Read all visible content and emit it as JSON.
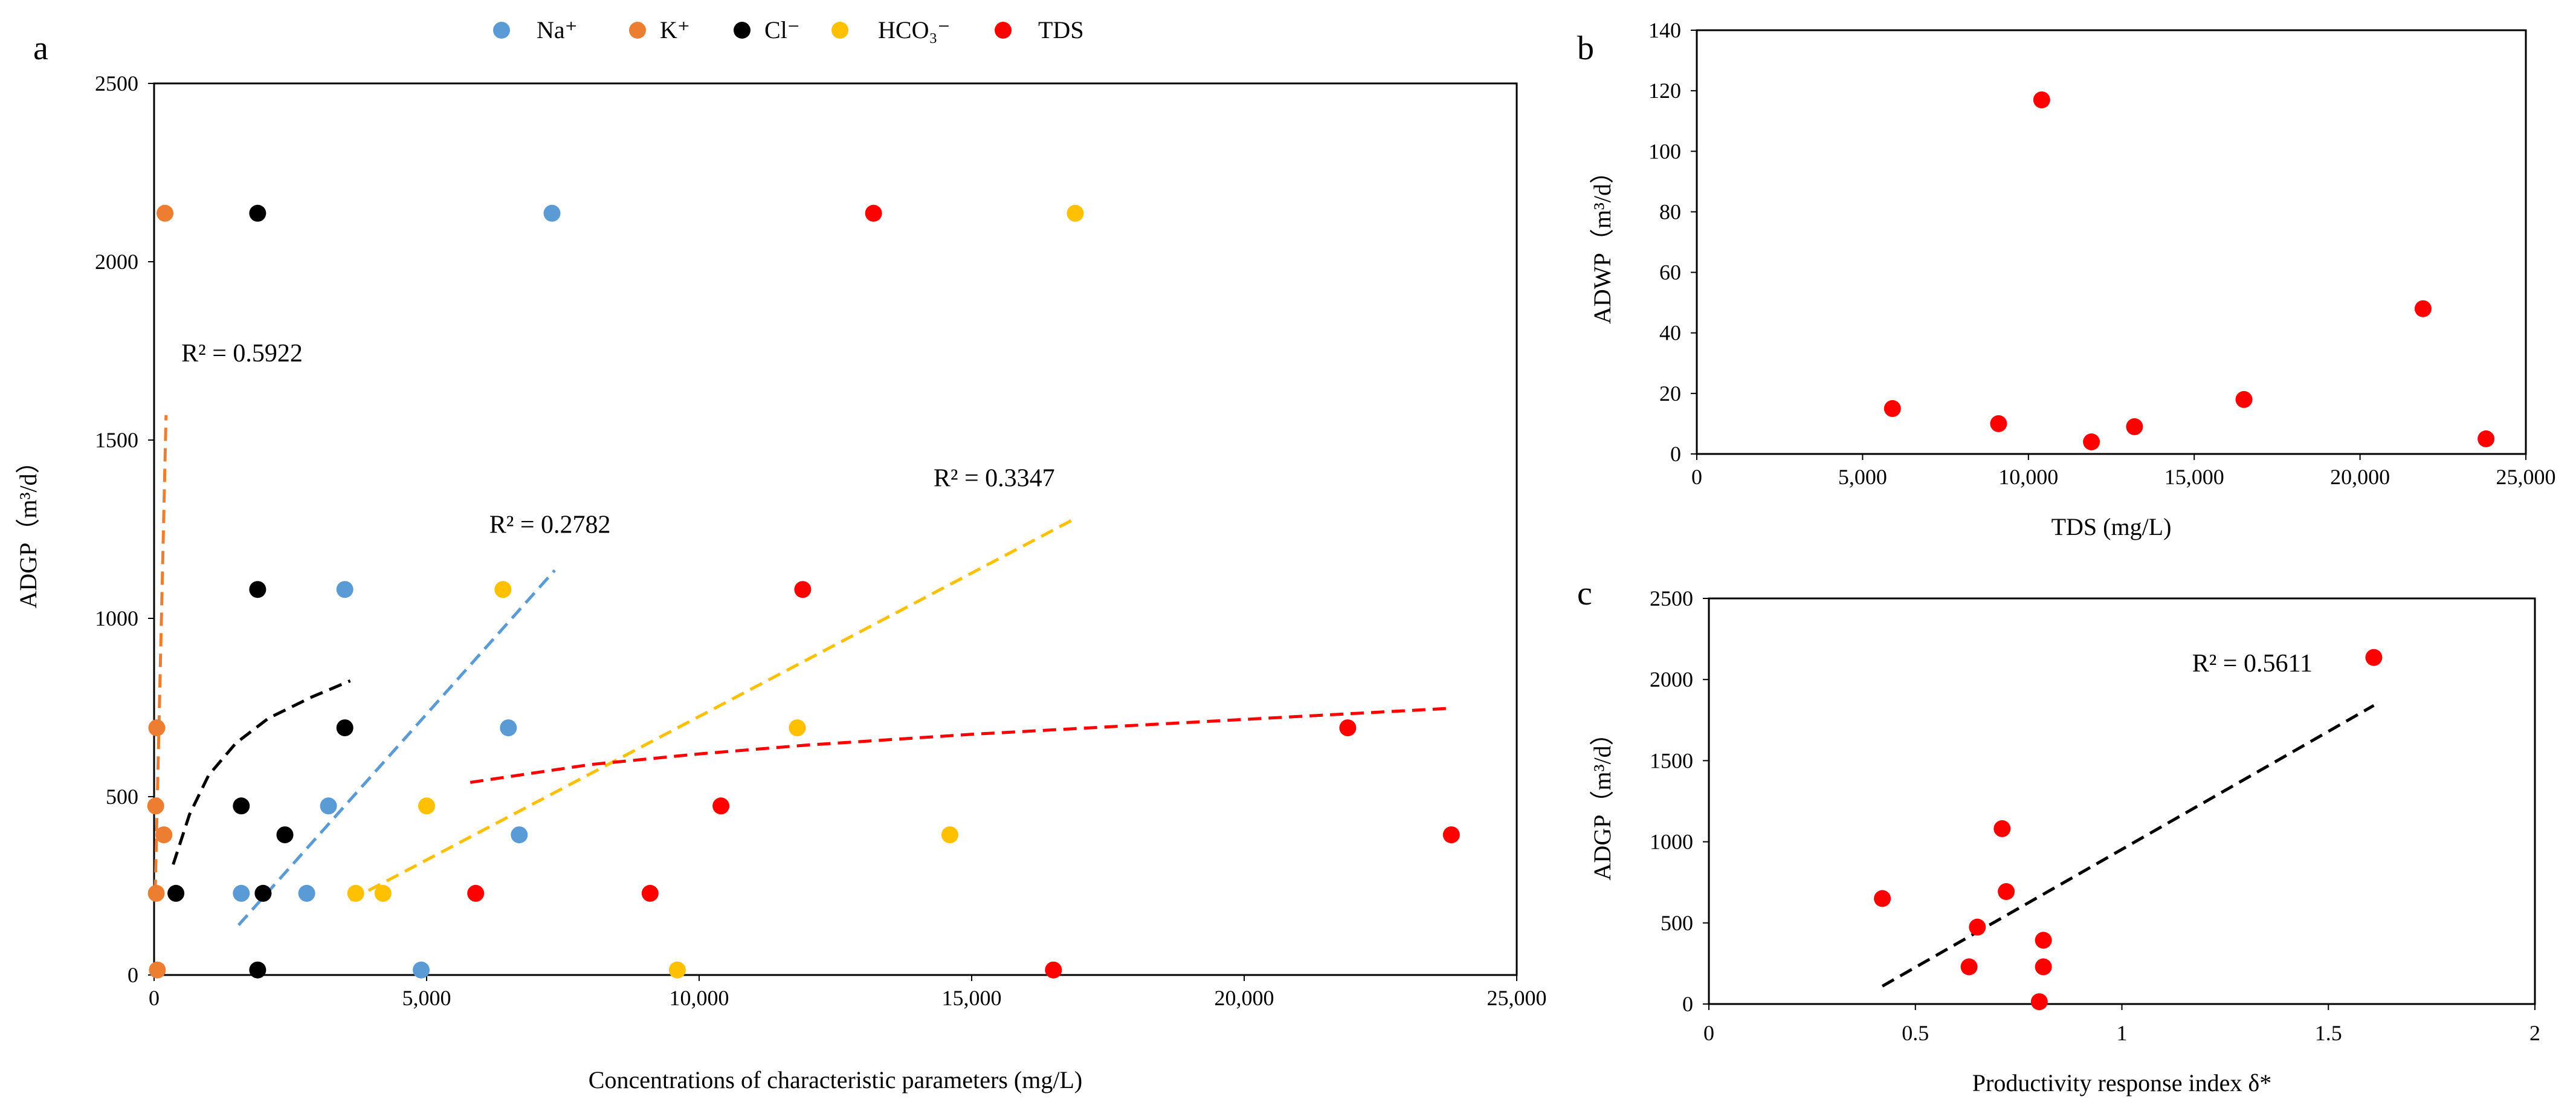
{
  "legend": [
    {
      "label": "Na⁺",
      "color": "#5B9BD5"
    },
    {
      "label": "K⁺",
      "color": "#ED7D31"
    },
    {
      "label": "Cl⁻",
      "color": "#000000"
    },
    {
      "label": "HCO₃⁻",
      "color": "#FFC000"
    },
    {
      "label": "TDS",
      "color": "#FF0000"
    }
  ],
  "chart_data": [
    {
      "id": "a",
      "panel_label": "a",
      "type": "scatter",
      "xlabel": "Concentrations of characteristic parameters (mg/L)",
      "ylabel": "ADGP（m³/d）",
      "xlim": [
        0,
        25000
      ],
      "ylim": [
        0,
        2500
      ],
      "x_ticks": [
        0,
        5000,
        10000,
        15000,
        20000,
        25000
      ],
      "x_tick_labels": [
        "0",
        "5,000",
        "10,000",
        "15,000",
        "20,000",
        "25,000"
      ],
      "y_ticks": [
        0,
        500,
        1000,
        1500,
        2000,
        2500
      ],
      "y_tick_labels": [
        "0",
        "500",
        "1000",
        "1500",
        "2000",
        "2500"
      ],
      "series": [
        {
          "name": "Na⁺",
          "color": "#5B9BD5",
          "points": [
            [
              7300,
              2136
            ],
            [
              3500,
              1081
            ],
            [
              6500,
              693
            ],
            [
              3200,
              474
            ],
            [
              6700,
              393
            ],
            [
              1600,
              229
            ],
            [
              2000,
              229
            ],
            [
              2800,
              229
            ],
            [
              4900,
              14
            ]
          ]
        },
        {
          "name": "K⁺",
          "color": "#ED7D31",
          "points": [
            [
              200,
              2136
            ],
            [
              50,
              693
            ],
            [
              30,
              474
            ],
            [
              180,
              393
            ],
            [
              40,
              229
            ],
            [
              60,
              14
            ]
          ]
        },
        {
          "name": "Cl⁻",
          "color": "#000000",
          "points": [
            [
              1900,
              2136
            ],
            [
              1900,
              1081
            ],
            [
              3500,
              693
            ],
            [
              1600,
              474
            ],
            [
              2400,
              393
            ],
            [
              400,
              229
            ],
            [
              2000,
              229
            ],
            [
              1900,
              14
            ]
          ]
        },
        {
          "name": "HCO₃⁻",
          "color": "#FFC000",
          "points": [
            [
              16900,
              2136
            ],
            [
              6400,
              1081
            ],
            [
              11800,
              693
            ],
            [
              5000,
              474
            ],
            [
              14600,
              393
            ],
            [
              3700,
              229
            ],
            [
              4200,
              229
            ],
            [
              9600,
              14
            ]
          ]
        },
        {
          "name": "TDS",
          "color": "#FF0000",
          "points": [
            [
              13200,
              2136
            ],
            [
              11900,
              1081
            ],
            [
              21900,
              693
            ],
            [
              10400,
              474
            ],
            [
              23800,
              393
            ],
            [
              5900,
              229
            ],
            [
              9100,
              229
            ],
            [
              16500,
              14
            ]
          ]
        }
      ],
      "trendlines": [
        {
          "series": "K⁺",
          "kind": "linear",
          "from": [
            20,
            230
          ],
          "to": [
            220,
            1570
          ],
          "color": "#ED7D31"
        },
        {
          "series": "Cl⁻",
          "kind": "curve",
          "points": [
            [
              350,
              310
            ],
            [
              650,
              450
            ],
            [
              1000,
              560
            ],
            [
              1500,
              650
            ],
            [
              2100,
              720
            ],
            [
              2900,
              780
            ],
            [
              3600,
              825
            ]
          ],
          "color": "#000000"
        },
        {
          "series": "Na⁺",
          "kind": "linear",
          "from": [
            1550,
            140
          ],
          "to": [
            7350,
            1135
          ],
          "color": "#5B9BD5"
        },
        {
          "series": "HCO₃⁻",
          "kind": "linear",
          "from": [
            3600,
            210
          ],
          "to": [
            16900,
            1280
          ],
          "color": "#FFC000"
        },
        {
          "series": "TDS",
          "kind": "log",
          "points": [
            [
              5800,
              540
            ],
            [
              8000,
              590
            ],
            [
              10000,
              620
            ],
            [
              12000,
              645
            ],
            [
              15000,
              675
            ],
            [
              18000,
              700
            ],
            [
              21000,
              725
            ],
            [
              23800,
              748
            ]
          ],
          "color": "#FF0000"
        }
      ],
      "annotations": [
        {
          "text": "R² = 0.5922",
          "at": [
            500,
            1720
          ],
          "anchor": "start"
        },
        {
          "text": "R² = 0.2782",
          "at": [
            6150,
            1240
          ],
          "anchor": "start"
        },
        {
          "text": "R² = 0.3347",
          "at": [
            14300,
            1370
          ],
          "anchor": "start"
        }
      ]
    },
    {
      "id": "b",
      "panel_label": "b",
      "type": "scatter",
      "xlabel": "TDS (mg/L)",
      "ylabel": "ADWP（m³/d）",
      "xlim": [
        0,
        25000
      ],
      "ylim": [
        0,
        140
      ],
      "x_ticks": [
        0,
        5000,
        10000,
        15000,
        20000,
        25000
      ],
      "x_tick_labels": [
        "0",
        "5,000",
        "10,000",
        "15,000",
        "20,000",
        "25,000"
      ],
      "y_ticks": [
        0,
        20,
        40,
        60,
        80,
        100,
        120,
        140
      ],
      "y_tick_labels": [
        "0",
        "20",
        "40",
        "60",
        "80",
        "100",
        "120",
        "140"
      ],
      "series": [
        {
          "name": "TDS",
          "color": "#FF0000",
          "points": [
            [
              5900,
              15
            ],
            [
              9100,
              10
            ],
            [
              10400,
              117
            ],
            [
              11900,
              4
            ],
            [
              13200,
              9
            ],
            [
              16500,
              18
            ],
            [
              21900,
              48
            ],
            [
              23800,
              5
            ]
          ]
        }
      ],
      "trendlines": [],
      "annotations": []
    },
    {
      "id": "c",
      "panel_label": "c",
      "type": "scatter",
      "xlabel": "Productivity response index δ*",
      "ylabel": "ADGP（m³/d）",
      "xlim": [
        0,
        2
      ],
      "ylim": [
        0,
        2500
      ],
      "x_ticks": [
        0,
        0.5,
        1,
        1.5,
        2
      ],
      "x_tick_labels": [
        "0",
        "0.5",
        "1",
        "1.5",
        "2"
      ],
      "y_ticks": [
        0,
        500,
        1000,
        1500,
        2000,
        2500
      ],
      "y_tick_labels": [
        "0",
        "500",
        "1000",
        "1500",
        "2000",
        "2500"
      ],
      "series": [
        {
          "name": "δ*",
          "color": "#FF0000",
          "points": [
            [
              0.42,
              650
            ],
            [
              0.63,
              229
            ],
            [
              0.65,
              474
            ],
            [
              0.71,
              1081
            ],
            [
              0.72,
              693
            ],
            [
              0.8,
              14
            ],
            [
              0.81,
              229
            ],
            [
              0.81,
              393
            ],
            [
              1.61,
              2136
            ]
          ]
        }
      ],
      "trendlines": [
        {
          "series": "δ*",
          "kind": "linear",
          "from": [
            0.42,
            110
          ],
          "to": [
            1.61,
            1840
          ],
          "color": "#000000"
        }
      ],
      "annotations": [
        {
          "text": "R² = 0.5611",
          "at": [
            1.17,
            2050
          ],
          "anchor": "start"
        }
      ]
    }
  ]
}
